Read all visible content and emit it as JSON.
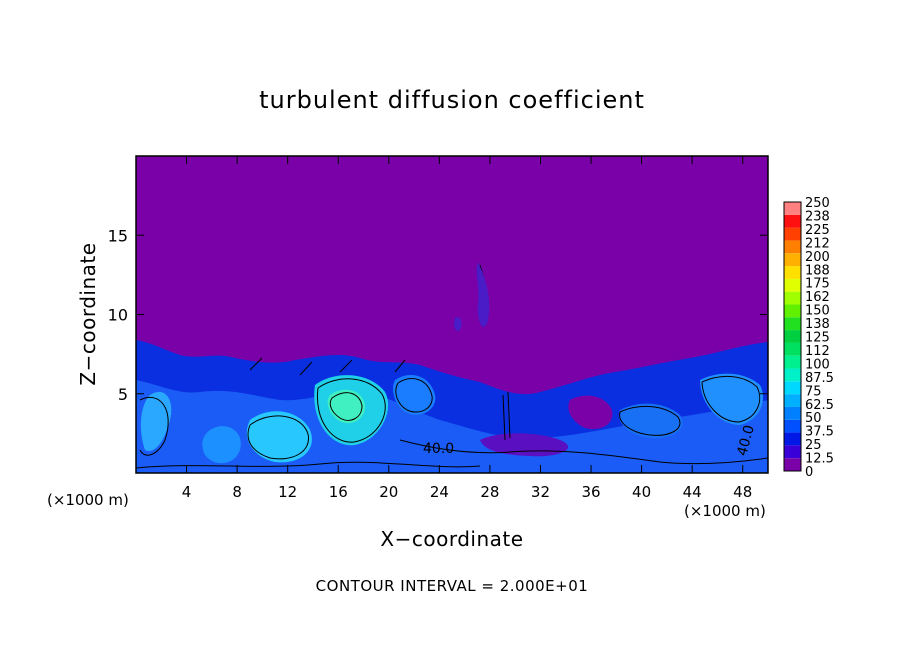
{
  "chart_data": {
    "type": "heatmap",
    "title": "turbulent diffusion coefficient",
    "xlabel": "X−coordinate",
    "ylabel": "Z−coordinate",
    "x_unit": "(×1000 m)",
    "y_unit": "(×1000 m)",
    "xlim": [
      0,
      50
    ],
    "ylim": [
      0,
      20
    ],
    "x_ticks": [
      4,
      8,
      12,
      16,
      20,
      24,
      28,
      32,
      36,
      40,
      44,
      48
    ],
    "y_ticks": [
      5,
      10,
      15
    ],
    "colorbar_labels": [
      "0",
      "12.5",
      "25",
      "37.5",
      "50",
      "62.5",
      "75",
      "87.5",
      "100",
      "112",
      "125",
      "138",
      "150",
      "162",
      "175",
      "188",
      "200",
      "212",
      "225",
      "238",
      "250"
    ],
    "colorbar_colors": [
      "#7a00a8",
      "#3a00d8",
      "#0018e6",
      "#0050ff",
      "#0080ff",
      "#00b0ff",
      "#00d8ff",
      "#00f0c8",
      "#00f090",
      "#00e060",
      "#00d040",
      "#20e020",
      "#60f000",
      "#a0ff00",
      "#e0ff00",
      "#ffe000",
      "#ffb000",
      "#ff8000",
      "#ff4000",
      "#ff1010",
      "#ff8080"
    ],
    "background_color": "#7a00a8",
    "contour_labels": [
      "40.0",
      "40.0"
    ],
    "footer": "CONTOUR INTERVAL = 2.000E+01"
  }
}
